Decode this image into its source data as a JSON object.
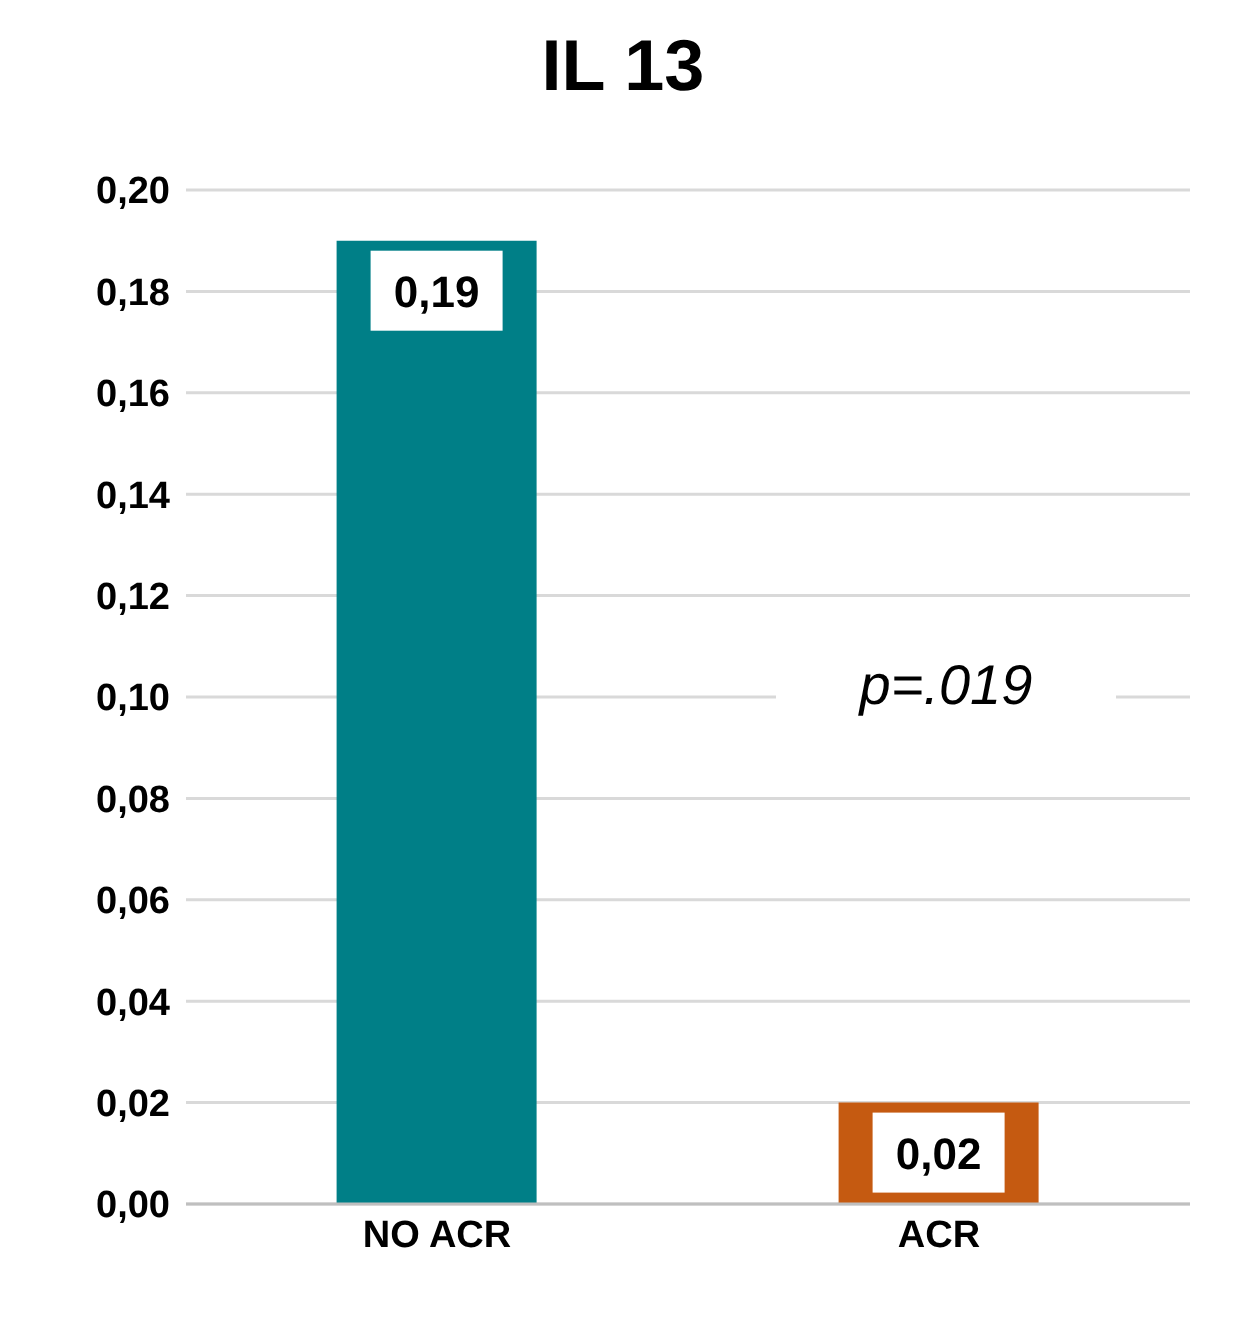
{
  "chart_data": {
    "type": "bar",
    "title": "IL 13",
    "categories": [
      "NO ACR",
      "ACR"
    ],
    "values": [
      0.19,
      0.02
    ],
    "colors": [
      "#007f87",
      "#c55a11"
    ],
    "value_labels": [
      "0,19",
      "0,02"
    ],
    "ylim": [
      0,
      0.2
    ],
    "yticks": [
      {
        "value": 0,
        "label": "0,00"
      },
      {
        "value": 0.02,
        "label": "0,02"
      },
      {
        "value": 0.04,
        "label": "0,04"
      },
      {
        "value": 0.06,
        "label": "0,06"
      },
      {
        "value": 0.08,
        "label": "0,08"
      },
      {
        "value": 0.1,
        "label": "0,10"
      },
      {
        "value": 0.12,
        "label": "0,12"
      },
      {
        "value": 0.14,
        "label": "0,14"
      },
      {
        "value": 0.16,
        "label": "0,16"
      },
      {
        "value": 0.18,
        "label": "0,18"
      },
      {
        "value": 0.2,
        "label": "0,20"
      }
    ],
    "grid": "y",
    "annotations": [
      "p=.019"
    ]
  }
}
